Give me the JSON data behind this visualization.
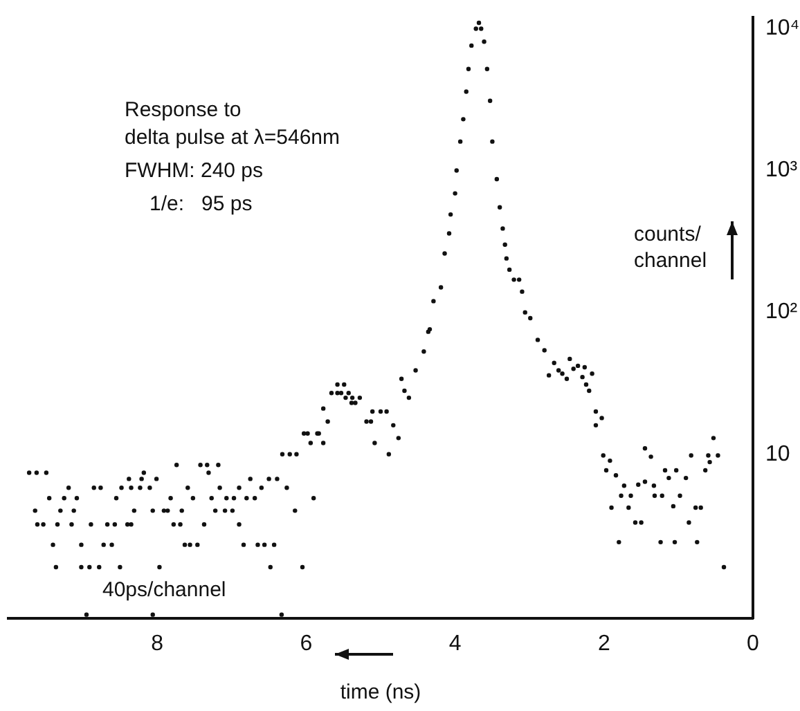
{
  "chart_data": {
    "type": "scatter",
    "xlabel": "time (ns)",
    "ylabel": "counts/ channel",
    "annotations": [
      "Response to delta pulse at λ=546nm",
      "FWHM: 240 ps",
      "1/e:   95 ps",
      "40ps/channel"
    ],
    "xlim": [
      10,
      0
    ],
    "xticks": [
      0,
      2,
      4,
      6,
      8
    ],
    "ylim": [
      0.7,
      12000
    ],
    "yticks": [
      {
        "value": 10,
        "label": "10"
      },
      {
        "value": 100,
        "label": "10²"
      },
      {
        "value": 1000,
        "label": "10³"
      },
      {
        "value": 10000,
        "label": "10⁴"
      }
    ],
    "log": "y",
    "grid": false,
    "legend": false,
    "marker": "circle",
    "series": [
      {
        "color": "#111111",
        "x": [
          9.72,
          9.62,
          9.49,
          9.64,
          9.45,
          9.25,
          9.08,
          9.19,
          9.61,
          9.53,
          9.34,
          9.15,
          9.4,
          9.02,
          8.72,
          8.61,
          9.36,
          9.02,
          8.91,
          8.78,
          8.5,
          7.97,
          9.3,
          9.12,
          8.85,
          8.76,
          8.48,
          8.35,
          8.23,
          8.1,
          8.55,
          7.82,
          7.52,
          7.27,
          7.07,
          6.97,
          6.8,
          6.69,
          8.38,
          8.21,
          8.01,
          8.18,
          7.74,
          7.42,
          7.33,
          7.18,
          7.31,
          8.31,
          8.06,
          7.91,
          7.86,
          7.67,
          7.22,
          7.09,
          6.99,
          8.89,
          8.67,
          8.57,
          8.4,
          8.35,
          7.78,
          7.69,
          7.37,
          6.9,
          7.59,
          7.16,
          6.9,
          6.6,
          6.75,
          6.5,
          6.39,
          7.63,
          7.56,
          7.46,
          6.84,
          6.65,
          6.56,
          6.43,
          6.48,
          6.05,
          6.15,
          5.9,
          6.26,
          6.32,
          6.22,
          6.13,
          6.03,
          5.85,
          5.94,
          5.77,
          5.98,
          5.83,
          5.71,
          5.77,
          5.66,
          5.58,
          5.53,
          5.43,
          5.58,
          5.49,
          5.47,
          5.38,
          5.28,
          5.39,
          5.34,
          5.11,
          5.0,
          4.92,
          5.19,
          5.13,
          5.08,
          4.89,
          8.95,
          8.06,
          6.33,
          4.83,
          4.76,
          4.68,
          4.62,
          4.72,
          4.53,
          4.42,
          4.36,
          4.34,
          4.29,
          4.19,
          4.14,
          4.08,
          4.06,
          4.0,
          3.98,
          3.93,
          3.89,
          3.85,
          3.82,
          3.78,
          3.72,
          3.68,
          3.65,
          3.61,
          3.57,
          3.53,
          3.5,
          3.44,
          3.4,
          3.36,
          3.33,
          3.31,
          3.27,
          3.21,
          3.14,
          3.1,
          3.06,
          2.99,
          2.89,
          2.8,
          2.67,
          2.74,
          2.61,
          2.56,
          2.5,
          2.46,
          2.41,
          2.35,
          2.29,
          2.26,
          2.24,
          2.16,
          2.2,
          2.11,
          2.03,
          2.11,
          2.01,
          1.92,
          1.97,
          1.84,
          1.73,
          1.77,
          1.9,
          1.8,
          1.64,
          1.67,
          1.54,
          1.58,
          1.5,
          1.45,
          1.45,
          1.37,
          1.33,
          1.32,
          1.22,
          1.24,
          1.18,
          1.13,
          1.07,
          1.03,
          1.05,
          0.98,
          0.9,
          0.86,
          0.83,
          0.75,
          0.77,
          0.7,
          0.64,
          0.6,
          0.58,
          0.53,
          0.47,
          0.39
        ],
        "values": [
          7.4,
          7.4,
          7.4,
          4,
          4.9,
          4.9,
          4.9,
          5.8,
          3.2,
          3.2,
          3.2,
          3.2,
          2.3,
          2.3,
          2.3,
          2.3,
          1.6,
          1.6,
          1.6,
          1.6,
          1.6,
          1.6,
          4,
          4,
          5.8,
          5.8,
          5.8,
          5.8,
          5.8,
          5.8,
          4.9,
          4.9,
          4.9,
          4.9,
          4.9,
          4.9,
          4.9,
          4.9,
          6.7,
          6.7,
          6.7,
          7.4,
          8.4,
          8.4,
          8.4,
          8.4,
          7.4,
          4,
          4,
          4,
          4,
          4,
          4,
          4,
          4,
          3.2,
          3.2,
          3.2,
          3.2,
          3.2,
          3.2,
          3.2,
          3.2,
          3.2,
          5.8,
          5.8,
          5.8,
          5.8,
          6.7,
          6.7,
          6.7,
          2.3,
          2.3,
          2.3,
          2.3,
          2.3,
          2.3,
          2.3,
          1.6,
          1.6,
          4,
          4.9,
          5.8,
          10,
          10,
          10,
          14,
          14,
          12,
          12,
          14,
          14,
          17,
          21,
          27,
          27,
          27,
          27,
          31,
          31,
          25,
          25,
          25,
          23,
          23,
          20,
          20,
          20,
          17,
          17,
          12,
          10,
          0.74,
          0.74,
          0.74,
          16,
          13,
          28,
          25,
          34,
          39,
          53,
          73,
          76,
          120,
          150,
          260,
          360,
          490,
          690,
          1000,
          1600,
          2300,
          3600,
          5200,
          7600,
          10000,
          11000,
          10000,
          8100,
          5200,
          3100,
          1600,
          870,
          550,
          390,
          300,
          240,
          200,
          170,
          170,
          140,
          100,
          91,
          64,
          54,
          44,
          36,
          39,
          37,
          34,
          47,
          40,
          42,
          35,
          41,
          31,
          37,
          28,
          20,
          18,
          16,
          9.8,
          9,
          7.7,
          7.1,
          6,
          5.1,
          4.2,
          2.4,
          5.1,
          4.2,
          6.1,
          3.3,
          3.3,
          6.4,
          11,
          9.6,
          6,
          5.1,
          5.1,
          2.4,
          7.7,
          6.8,
          4.3,
          7.7,
          2.4,
          5.1,
          6.8,
          3.3,
          9.8,
          2.4,
          4.2,
          4.2,
          7.7,
          9.8,
          8.8,
          13,
          9.8,
          1.6
        ]
      }
    ]
  }
}
